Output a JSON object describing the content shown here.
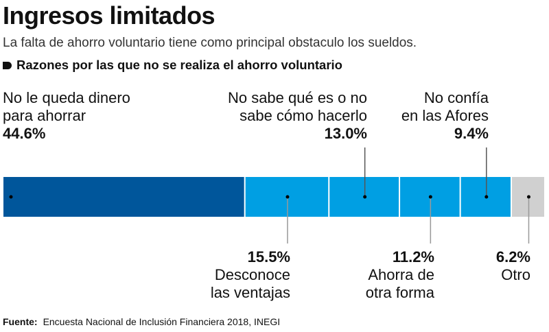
{
  "title": "Ingresos limitados",
  "subtitle": "La falta de ahorro voluntario tiene como principal obstaculo los sueldos.",
  "chart_data": {
    "type": "bar",
    "stacked": true,
    "orientation": "horizontal",
    "legend_title": "Razones por las que no se realiza el ahorro voluntario",
    "categories": [
      "No le queda dinero para ahorrar",
      "Desconoce las ventajas",
      "No sabe qué es o no sabe cómo hacerlo",
      "Ahorra de otra forma",
      "No confía en las Afores",
      "Otro"
    ],
    "values": [
      44.6,
      15.5,
      13.0,
      11.2,
      9.4,
      6.2
    ],
    "value_labels": [
      "44.6%",
      "15.5%",
      "13.0%",
      "11.2%",
      "9.4%",
      "6.2%"
    ],
    "label_lines": [
      [
        "No le queda dinero",
        "para ahorrar"
      ],
      [
        "Desconoce",
        "las ventajas"
      ],
      [
        "No sabe qué es o no",
        "sabe cómo hacerlo"
      ],
      [
        "Ahorra de",
        "otra forma"
      ],
      [
        "No confía",
        "en las Afores"
      ],
      [
        "Otro"
      ]
    ],
    "colors": [
      "#00569b",
      "#009fe3",
      "#009fe3",
      "#009fe3",
      "#009fe3",
      "#d0d0d0"
    ]
  },
  "source": {
    "label": "Fuente:",
    "text": "Encuesta Nacional de Inclusión Financiera 2018, INEGI"
  }
}
